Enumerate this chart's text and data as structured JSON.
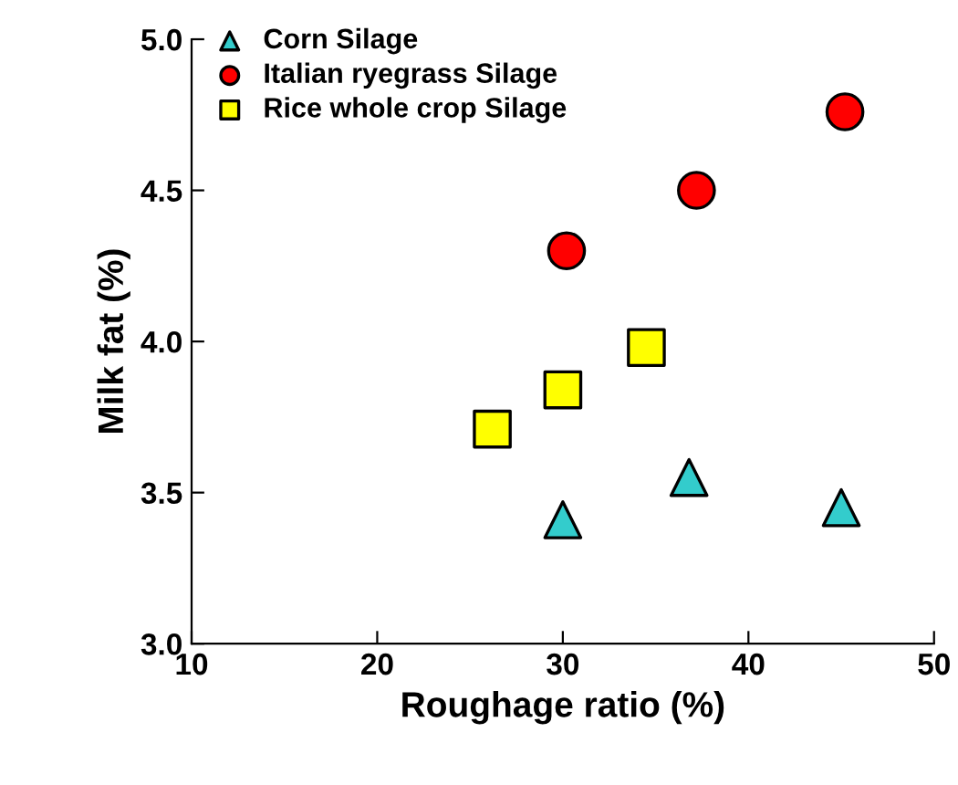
{
  "chart_data": {
    "type": "scatter",
    "xlabel": "Roughage ratio (%)",
    "ylabel": "Milk fat (%)",
    "xlim": [
      10,
      50
    ],
    "xticks": [
      10,
      20,
      30,
      40,
      50
    ],
    "ylim": [
      3.0,
      5.0
    ],
    "yticks": [
      {
        "value": 3.0,
        "label": "3.0"
      },
      {
        "value": 3.5,
        "label": "3.5"
      },
      {
        "value": 4.0,
        "label": "4.0"
      },
      {
        "value": 4.5,
        "label": "4.5"
      },
      {
        "value": 5.0,
        "label": "5.0"
      }
    ],
    "grid": false,
    "legend": "top left",
    "series": [
      {
        "name": "Corn Silage",
        "color": "#33cccc",
        "marker": "triangle",
        "x": [
          30,
          36.8,
          45
        ],
        "values": [
          3.41,
          3.55,
          3.45
        ]
      },
      {
        "name": "Italian ryegrass Silage",
        "color": "#ff0000",
        "marker": "circle",
        "x": [
          30.2,
          37.2,
          45.2
        ],
        "values": [
          4.3,
          4.5,
          4.76
        ]
      },
      {
        "name": "Rice whole crop Silage",
        "color": "#ffff00",
        "marker": "square",
        "x": [
          26.2,
          30,
          34.5
        ],
        "values": [
          3.71,
          3.84,
          3.98
        ]
      }
    ]
  }
}
